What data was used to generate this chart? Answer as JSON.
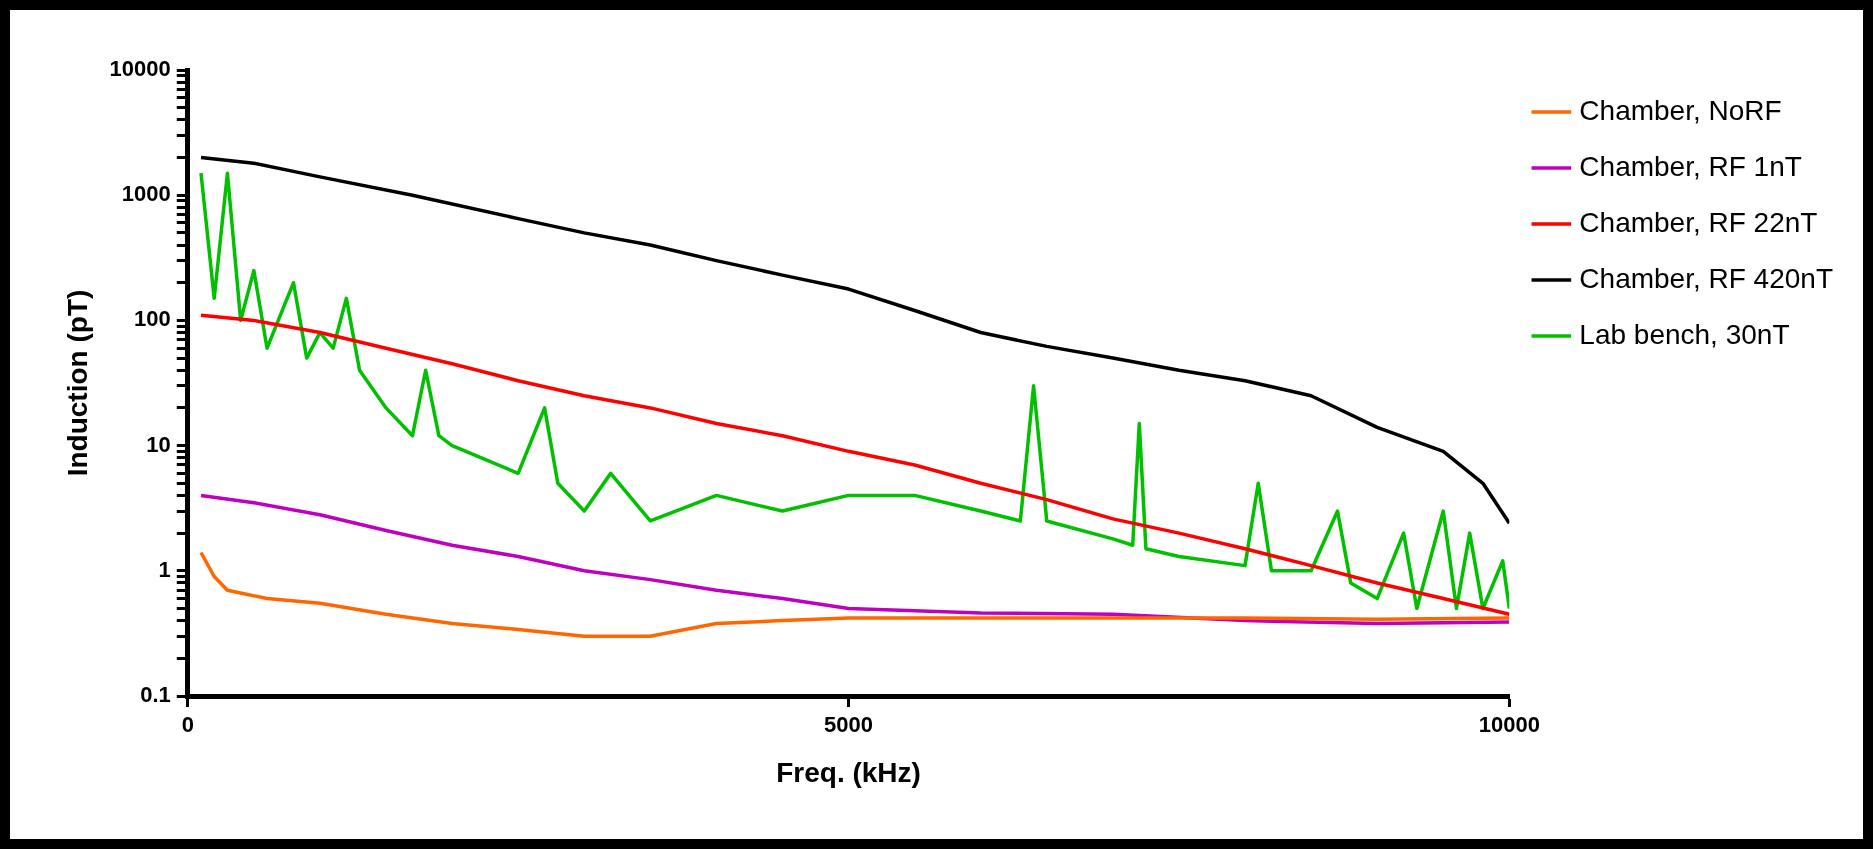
{
  "chart_data": {
    "type": "line",
    "xlabel": "Freq. (kHz)",
    "ylabel": "Induction (pT)",
    "log": "y",
    "grid": false,
    "legend": "right",
    "marker": "none",
    "line_style": "solid",
    "xlim": [
      0,
      10000
    ],
    "xticks": [
      0,
      5000,
      10000
    ],
    "ylim": [
      0.1,
      10000
    ],
    "yticks": [
      0.1,
      {
        "value": 0.2,
        "label": null
      },
      {
        "value": 0.3,
        "label": null
      },
      {
        "value": 0.4,
        "label": null
      },
      {
        "value": 0.5,
        "label": null
      },
      {
        "value": 0.6,
        "label": null
      },
      {
        "value": 0.7,
        "label": null
      },
      {
        "value": 0.8,
        "label": null
      },
      {
        "value": 0.9,
        "label": null
      },
      1,
      {
        "value": 2,
        "label": null
      },
      {
        "value": 3,
        "label": null
      },
      {
        "value": 4,
        "label": null
      },
      {
        "value": 5,
        "label": null
      },
      {
        "value": 6,
        "label": null
      },
      {
        "value": 7,
        "label": null
      },
      {
        "value": 8,
        "label": null
      },
      {
        "value": 9,
        "label": null
      },
      10,
      {
        "value": 20,
        "label": null
      },
      {
        "value": 30,
        "label": null
      },
      {
        "value": 40,
        "label": null
      },
      {
        "value": 50,
        "label": null
      },
      {
        "value": 60,
        "label": null
      },
      {
        "value": 70,
        "label": null
      },
      {
        "value": 80,
        "label": null
      },
      {
        "value": 90,
        "label": null
      },
      100,
      {
        "value": 200,
        "label": null
      },
      {
        "value": 300,
        "label": null
      },
      {
        "value": 400,
        "label": null
      },
      {
        "value": 500,
        "label": null
      },
      {
        "value": 600,
        "label": null
      },
      {
        "value": 700,
        "label": null
      },
      {
        "value": 800,
        "label": null
      },
      {
        "value": 900,
        "label": null
      },
      1000,
      {
        "value": 2000,
        "label": null
      },
      {
        "value": 3000,
        "label": null
      },
      {
        "value": 4000,
        "label": null
      },
      {
        "value": 5000,
        "label": null
      },
      {
        "value": 6000,
        "label": null
      },
      {
        "value": 7000,
        "label": null
      },
      {
        "value": 8000,
        "label": null
      },
      {
        "value": 9000,
        "label": null
      },
      10000
    ],
    "series": [
      {
        "name": "Chamber, NoRF",
        "color": "#ff6600",
        "x": [
          100,
          200,
          300,
          600,
          1000,
          1500,
          2000,
          2500,
          3000,
          3500,
          4000,
          4500,
          5000,
          6000,
          7000,
          8000,
          9000,
          10000
        ],
        "values": [
          1.4,
          0.9,
          0.7,
          0.6,
          0.55,
          0.45,
          0.38,
          0.34,
          0.3,
          0.3,
          0.38,
          0.4,
          0.42,
          0.42,
          0.42,
          0.42,
          0.41,
          0.42
        ]
      },
      {
        "name": "Chamber, RF 1nT",
        "color": "#c000c0",
        "x": [
          100,
          500,
          1000,
          1500,
          2000,
          2500,
          3000,
          3500,
          4000,
          4500,
          5000,
          6000,
          7000,
          8000,
          9000,
          10000
        ],
        "values": [
          4,
          3.5,
          2.8,
          2.1,
          1.6,
          1.3,
          1.0,
          0.85,
          0.7,
          0.6,
          0.5,
          0.46,
          0.45,
          0.4,
          0.38,
          0.39
        ]
      },
      {
        "name": "Chamber, RF 22nT",
        "color": "#ff0000",
        "x": [
          100,
          500,
          1000,
          1500,
          2000,
          2500,
          3000,
          3500,
          4000,
          4500,
          5000,
          5500,
          6000,
          6500,
          7000,
          7500,
          8000,
          8500,
          9000,
          9500,
          10000
        ],
        "values": [
          110,
          100,
          80,
          60,
          45,
          33,
          25,
          20,
          15,
          12,
          9,
          7,
          5,
          3.7,
          2.6,
          2,
          1.5,
          1.1,
          0.8,
          0.6,
          0.45
        ]
      },
      {
        "name": "Chamber, RF 420nT",
        "color": "#000000",
        "x": [
          100,
          500,
          1000,
          1700,
          2500,
          3000,
          3500,
          4000,
          4500,
          5000,
          5500,
          6000,
          6500,
          7000,
          7500,
          8000,
          8500,
          9000,
          9500,
          9800,
          10000
        ],
        "values": [
          2000,
          1800,
          1400,
          1000,
          650,
          500,
          400,
          300,
          230,
          178,
          120,
          80,
          62,
          50,
          40,
          33,
          25,
          14,
          9,
          5,
          2.4
        ]
      },
      {
        "name": "Lab bench, 30nT",
        "color": "#00c000",
        "x": [
          100,
          200,
          300,
          400,
          500,
          600,
          800,
          900,
          1000,
          1100,
          1200,
          1300,
          1500,
          1700,
          1800,
          1900,
          2000,
          2500,
          2700,
          2800,
          3000,
          3200,
          3500,
          4000,
          4500,
          5000,
          5500,
          6000,
          6300,
          6400,
          6500,
          7000,
          7150,
          7200,
          7250,
          7500,
          8000,
          8100,
          8200,
          8500,
          8700,
          8800,
          9000,
          9200,
          9300,
          9500,
          9600,
          9700,
          9800,
          9950,
          10000
        ],
        "values": [
          1500,
          150,
          1500,
          100,
          250,
          60,
          200,
          50,
          80,
          60,
          150,
          40,
          20,
          12,
          40,
          12,
          10,
          6,
          20,
          5,
          3,
          6,
          2.5,
          4,
          3,
          4,
          4,
          3,
          2.5,
          30,
          2.5,
          1.8,
          1.6,
          15,
          1.5,
          1.3,
          1.1,
          5,
          1.0,
          1.0,
          3,
          0.8,
          0.6,
          2,
          0.5,
          3,
          0.5,
          2,
          0.5,
          1.2,
          0.5
        ]
      }
    ]
  }
}
